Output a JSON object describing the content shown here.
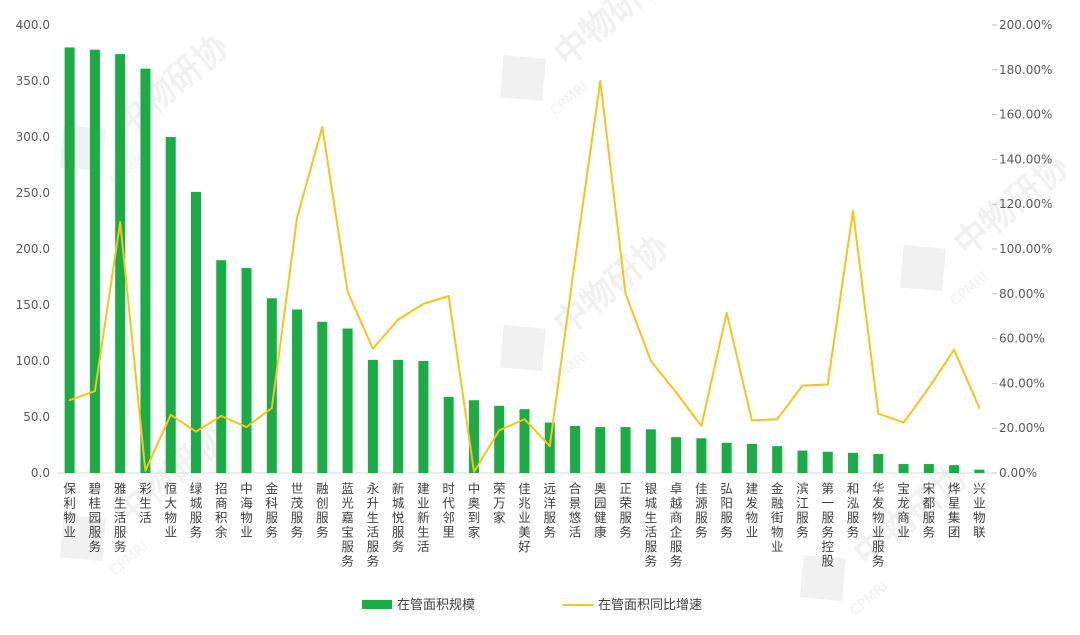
{
  "chart_data": {
    "type": "bar+line",
    "categories": [
      "保利物业",
      "碧桂园服务",
      "雅生活服务",
      "彩生活",
      "恒大物业",
      "绿城服务",
      "招商积余",
      "中海物业",
      "金科服务",
      "世茂服务",
      "融创服务",
      "蓝光嘉宝服务",
      "永升生活服务",
      "新城悦服务",
      "建业新生活",
      "时代邻里",
      "中奥到家",
      "荣万家",
      "佳兆业美好",
      "远洋服务",
      "合景悠活",
      "奥园健康",
      "正荣服务",
      "银城生活服务",
      "卓越商企服务",
      "佳源服务",
      "弘阳服务",
      "建发物业",
      "金融街物业",
      "滨江服务",
      "第一服务控股",
      "和泓服务",
      "华发物业服务",
      "宝龙商业",
      "宋都服务",
      "烨星集团",
      "兴业物联"
    ],
    "series": [
      {
        "name": "在管面积规模",
        "type": "bar",
        "axis": "left",
        "color": "#1aad45",
        "values": [
          380,
          378,
          374,
          361,
          300,
          251,
          190,
          183,
          156,
          146,
          135,
          129,
          101,
          101,
          100,
          68,
          65,
          60,
          57,
          45,
          42,
          41,
          41,
          39,
          32,
          31,
          27,
          26,
          24,
          20,
          19,
          18,
          17,
          8,
          8,
          7,
          3
        ]
      },
      {
        "name": "在管面积同比增速",
        "type": "line",
        "axis": "right",
        "color": "#f5c518",
        "values": [
          32.5,
          36.5,
          112,
          1.0,
          26,
          18.5,
          25.5,
          20.5,
          29,
          114,
          154.5,
          81,
          55.5,
          68.5,
          75.5,
          79,
          0.5,
          19,
          24,
          12,
          95,
          175,
          80,
          50,
          36,
          21,
          71.5,
          23.5,
          24,
          39,
          39.5,
          117,
          26.5,
          22.5,
          38,
          55,
          29
        ]
      }
    ],
    "y_left": {
      "min": 0,
      "max": 400,
      "step": 50,
      "tick_labels": [
        "0.0",
        "50.0",
        "100.0",
        "150.0",
        "200.0",
        "250.0",
        "300.0",
        "350.0",
        "400.0"
      ]
    },
    "y_right": {
      "min": 0,
      "max": 200,
      "step": 20,
      "tick_labels": [
        "0.00%",
        "20.00%",
        "40.00%",
        "60.00%",
        "80.00%",
        "100.00%",
        "120.00%",
        "140.00%",
        "160.00%",
        "180.00%",
        "200.00%"
      ]
    },
    "legend": {
      "position": "bottom",
      "items": [
        "在管面积规模",
        "在管面积同比增速"
      ]
    },
    "grid": false
  },
  "watermark": {
    "text": "中物研协",
    "subtext": "CPMRI"
  }
}
